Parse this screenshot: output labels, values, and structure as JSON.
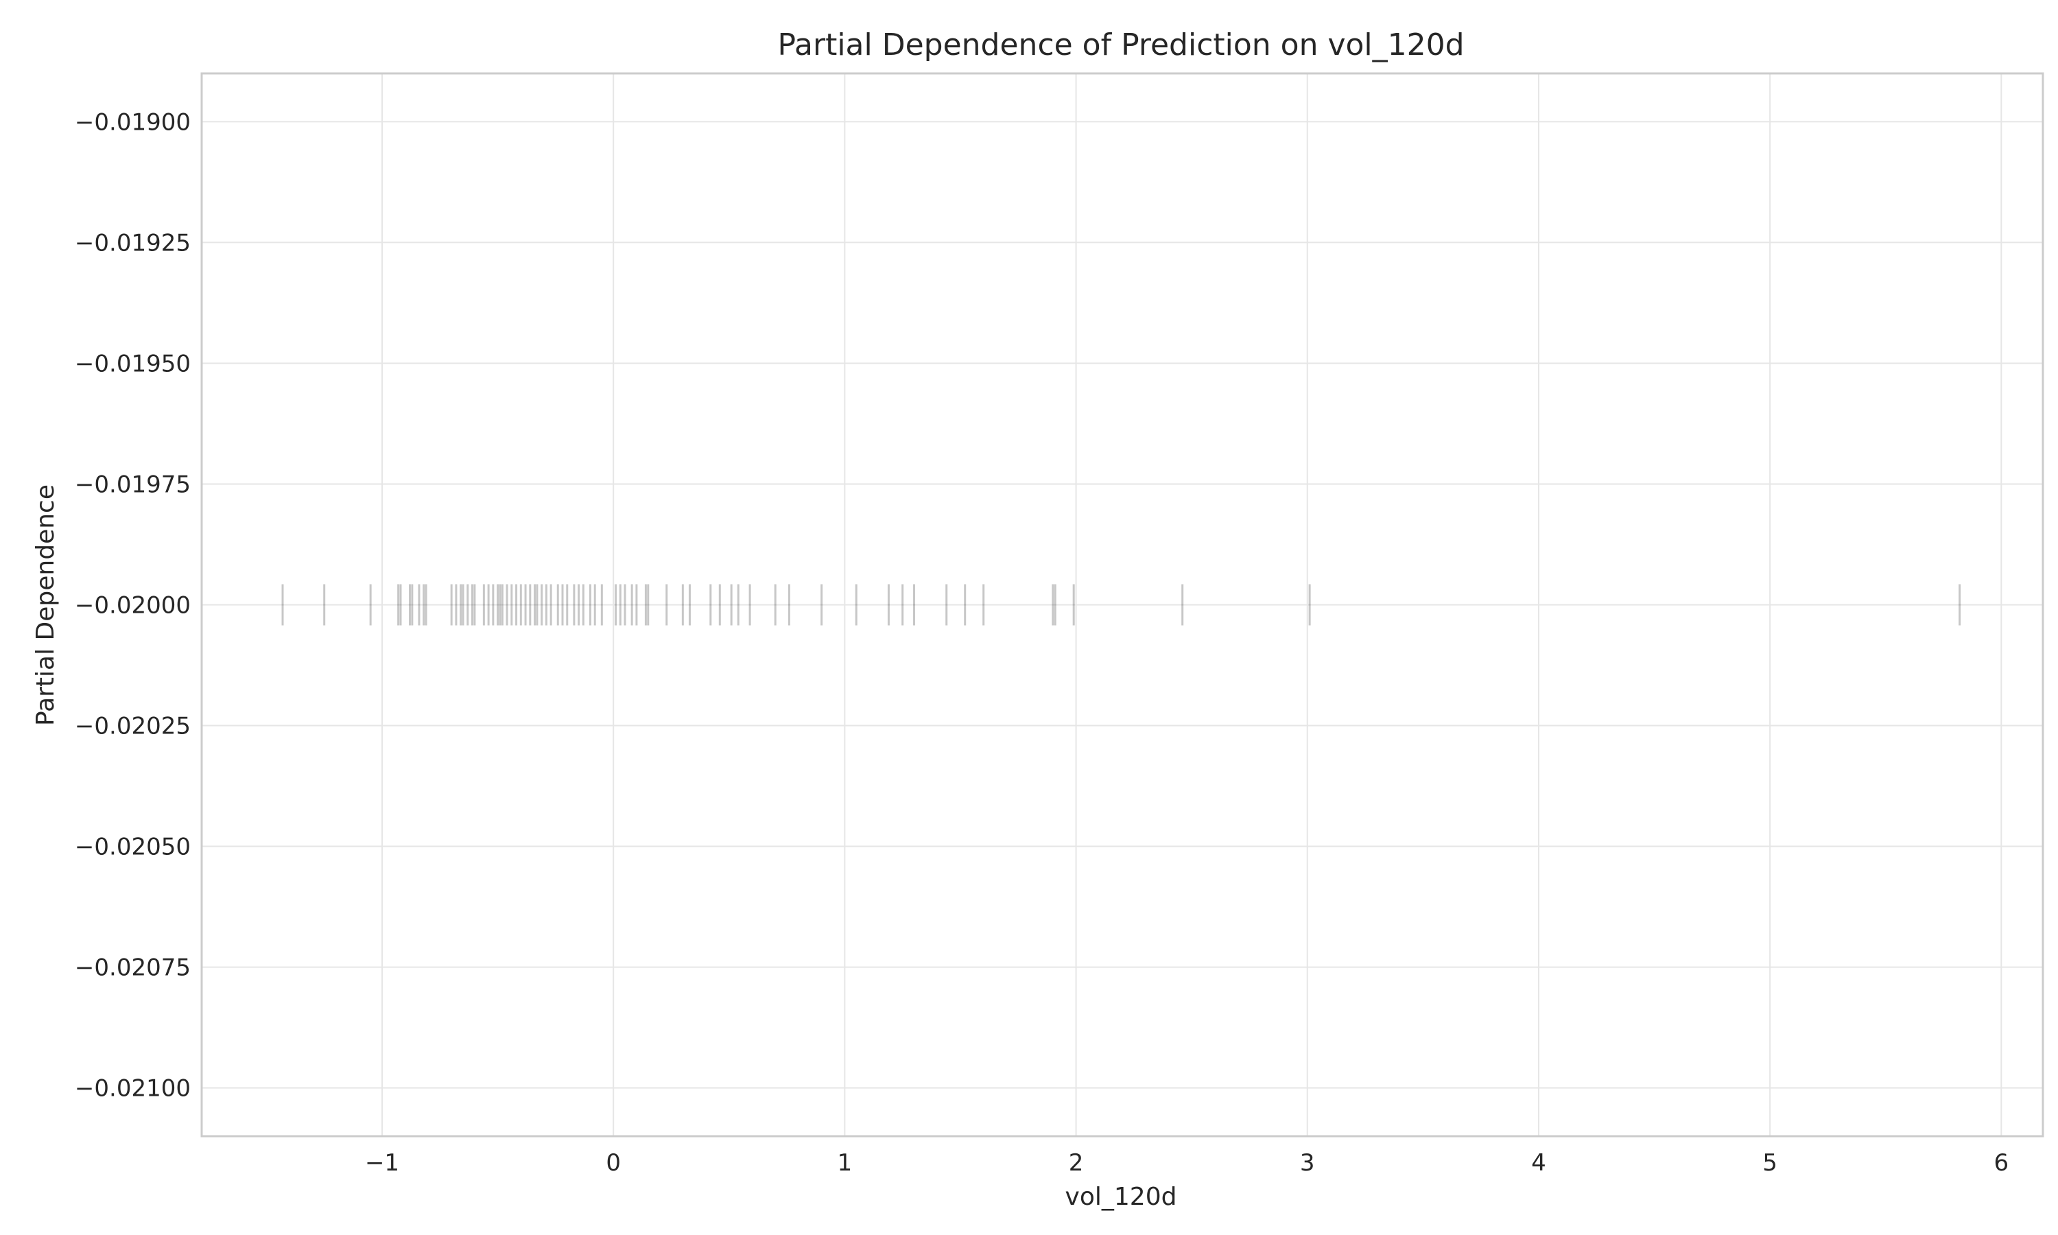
{
  "chart_data": {
    "type": "scatter",
    "title": "Partial Dependence of Prediction on vol_120d",
    "xlabel": "vol_120d",
    "ylabel": "Partial Dependence",
    "xlim": [
      -1.78,
      6.18
    ],
    "ylim": [
      -0.0211,
      -0.0189
    ],
    "xticks": [
      -1,
      0,
      1,
      2,
      3,
      4,
      5,
      6
    ],
    "xtick_labels": [
      "−1",
      "0",
      "1",
      "2",
      "3",
      "4",
      "5",
      "6"
    ],
    "yticks": [
      -0.019,
      -0.01925,
      -0.0195,
      -0.01975,
      -0.02,
      -0.02025,
      -0.0205,
      -0.02075,
      -0.021
    ],
    "ytick_labels": [
      "−0.01900",
      "−0.01925",
      "−0.01950",
      "−0.01975",
      "−0.02000",
      "−0.02025",
      "−0.02050",
      "−0.02075",
      "−0.02100"
    ],
    "grid": true,
    "rug": {
      "y": -0.02,
      "x": [
        -1.43,
        -1.25,
        -1.05,
        -0.93,
        -0.92,
        -0.88,
        -0.87,
        -0.84,
        -0.82,
        -0.81,
        -0.7,
        -0.68,
        -0.66,
        -0.65,
        -0.63,
        -0.61,
        -0.6,
        -0.56,
        -0.54,
        -0.52,
        -0.5,
        -0.49,
        -0.48,
        -0.46,
        -0.44,
        -0.42,
        -0.4,
        -0.38,
        -0.36,
        -0.34,
        -0.33,
        -0.31,
        -0.29,
        -0.27,
        -0.24,
        -0.22,
        -0.2,
        -0.17,
        -0.15,
        -0.13,
        -0.1,
        -0.08,
        -0.05,
        0.01,
        0.03,
        0.05,
        0.08,
        0.1,
        0.14,
        0.15,
        0.23,
        0.3,
        0.33,
        0.42,
        0.46,
        0.51,
        0.54,
        0.59,
        0.7,
        0.76,
        0.9,
        1.05,
        1.19,
        1.25,
        1.3,
        1.44,
        1.52,
        1.6,
        1.9,
        1.91,
        1.99,
        2.46,
        3.01,
        5.82
      ]
    }
  }
}
